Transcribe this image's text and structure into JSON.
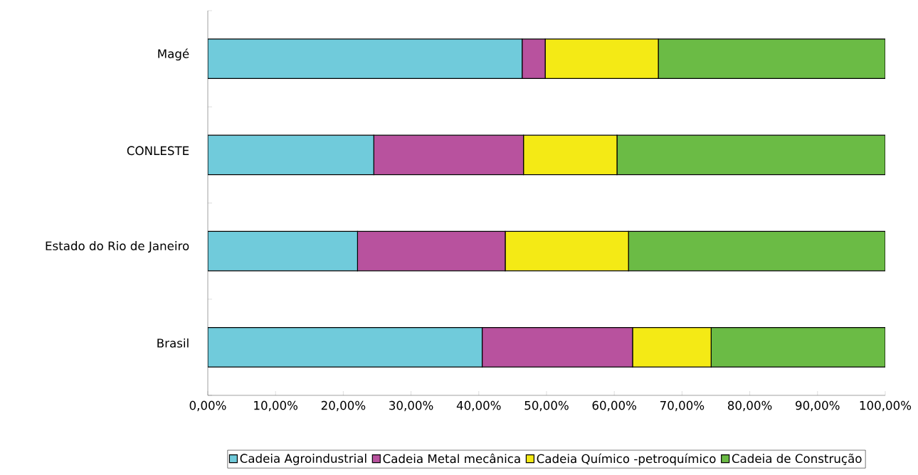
{
  "chart_data": {
    "type": "bar",
    "orientation": "horizontal",
    "stacked": true,
    "categories": [
      "Magé",
      "CONLESTE",
      "Estado do Rio de Janeiro",
      "Brasil"
    ],
    "series": [
      {
        "name": "Cadeia Agroindustrial",
        "color": "#70cbdb",
        "values": [
          46.4,
          24.5,
          22.1,
          40.5
        ]
      },
      {
        "name": "Cadeia Metal mecânica",
        "color": "#b8529e",
        "values": [
          3.4,
          22.1,
          21.8,
          22.2
        ]
      },
      {
        "name": "Cadeia Químico -petroquímico",
        "color": "#f4ea15",
        "values": [
          16.7,
          13.8,
          18.2,
          11.6
        ]
      },
      {
        "name": "Cadeia de Construção",
        "color": "#6bbb45",
        "values": [
          33.5,
          39.6,
          37.9,
          25.7
        ]
      }
    ],
    "xlim": [
      0,
      100
    ],
    "xticks": [
      {
        "value": 0,
        "label": "0,00%"
      },
      {
        "value": 10,
        "label": "10,00%"
      },
      {
        "value": 20,
        "label": "20,00%"
      },
      {
        "value": 30,
        "label": "30,00%"
      },
      {
        "value": 40,
        "label": "40,00%"
      },
      {
        "value": 50,
        "label": "50,00%"
      },
      {
        "value": 60,
        "label": "60,00%"
      },
      {
        "value": 70,
        "label": "70,00%"
      },
      {
        "value": 80,
        "label": "80,00%"
      },
      {
        "value": 90,
        "label": "90,00%"
      },
      {
        "value": 100,
        "label": "100,00%"
      }
    ],
    "legend": "bottom",
    "grid": false
  }
}
